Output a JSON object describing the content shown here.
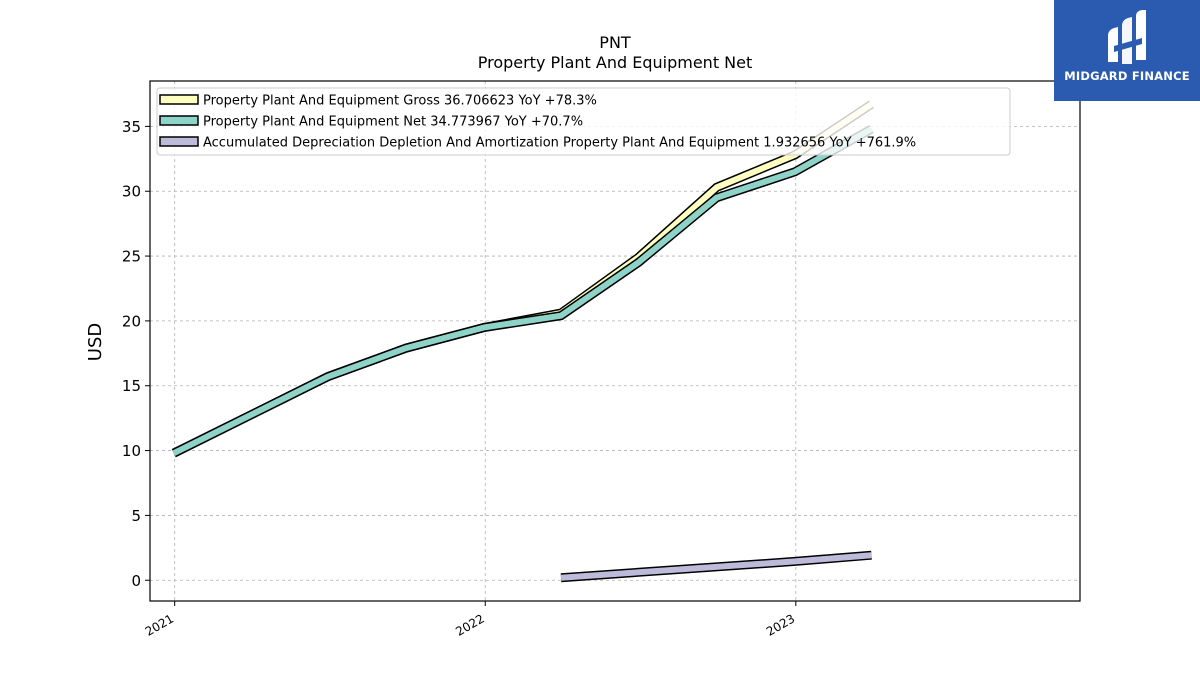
{
  "logo": {
    "text": "MIDGARD FINANCE",
    "icon": "midgard-logo-mark",
    "background": "#2b5bb0"
  },
  "chart_data": {
    "type": "line",
    "title": "PNT",
    "subtitle": "Property Plant And Equipment Net",
    "ylabel": "USD",
    "xlabel": "",
    "ylim": [
      -1.6,
      38.5
    ],
    "xlim": [
      "2020-12-03",
      "2023-12-01"
    ],
    "yticks": [
      0,
      5,
      10,
      15,
      20,
      25,
      30,
      35
    ],
    "xticks": [
      {
        "date": "2021-01-01",
        "label": "2021"
      },
      {
        "date": "2022-01-01",
        "label": "2022"
      },
      {
        "date": "2023-01-01",
        "label": "2023"
      }
    ],
    "grid": true,
    "legend_position": "top-left",
    "series": [
      {
        "name": "Property Plant And Equipment Gross",
        "legend": "Property Plant And Equipment Gross  36.706623 YoY +78.3%",
        "color": "#ffffc0",
        "x": [
          "2020-12-31",
          "2021-06-30",
          "2021-09-30",
          "2021-12-31",
          "2022-03-31",
          "2022-06-30",
          "2022-09-30",
          "2022-12-31",
          "2023-03-31"
        ],
        "y": [
          9.8,
          15.7,
          17.9,
          19.5,
          20.6,
          24.9,
          30.3,
          32.8,
          36.7
        ]
      },
      {
        "name": "Property Plant And Equipment Net",
        "legend": "Property Plant And Equipment Net  34.773967 YoY +70.7%",
        "color": "#8dd3c7",
        "x": [
          "2020-12-31",
          "2021-06-30",
          "2021-09-30",
          "2021-12-31",
          "2022-03-31",
          "2022-06-30",
          "2022-09-30",
          "2022-12-31",
          "2023-03-31"
        ],
        "y": [
          9.8,
          15.7,
          17.9,
          19.5,
          20.4,
          24.5,
          29.5,
          31.5,
          34.8
        ]
      },
      {
        "name": "Accumulated Depreciation Depletion And Amortization Property Plant And Equipment",
        "legend": "Accumulated Depreciation Depletion And Amortization Property Plant And Equipment  1.932656 YoY +761.9%",
        "color": "#bebada",
        "x": [
          "2022-03-31",
          "2022-12-31",
          "2023-03-31"
        ],
        "y": [
          0.2,
          1.45,
          1.93
        ]
      }
    ]
  }
}
